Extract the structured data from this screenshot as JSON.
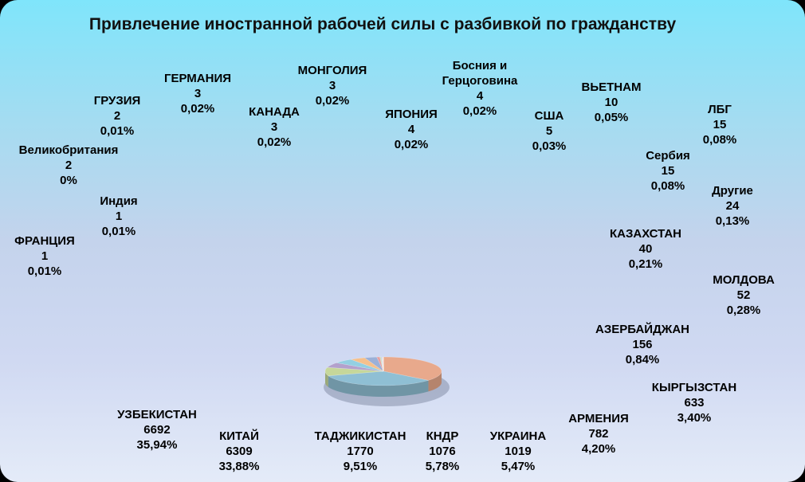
{
  "chart_data": {
    "type": "pie",
    "title": "Привлечение иностранной рабочей силы с разбивкой по гражданству",
    "slices": [
      {
        "name": "УЗБЕКИСТАН",
        "value": 6692,
        "percent": "35,94%",
        "color": "#e8a98c"
      },
      {
        "name": "КИТАЙ",
        "value": 6309,
        "percent": "33,88%",
        "color": "#8fbfd4"
      },
      {
        "name": "ТАДЖИКИСТАН",
        "value": 1770,
        "percent": "9,51%",
        "color": "#c6d79a"
      },
      {
        "name": "КНДР",
        "value": 1076,
        "percent": "5,78%",
        "color": "#b3a1cc"
      },
      {
        "name": "УКРАИНА",
        "value": 1019,
        "percent": "5,47%",
        "color": "#93cfe2"
      },
      {
        "name": "АРМЕНИЯ",
        "value": 782,
        "percent": "4,20%",
        "color": "#f5c08c"
      },
      {
        "name": "КЫРГЫЗСТАН",
        "value": 633,
        "percent": "3,40%",
        "color": "#9bb0d8"
      },
      {
        "name": "АЗЕРБАЙДЖАН",
        "value": 156,
        "percent": "0,84%",
        "color": "#e8a0a0"
      },
      {
        "name": "МОЛДОВА",
        "value": 52,
        "percent": "0,28%",
        "color": "#c4e0a0"
      },
      {
        "name": "КАЗАХСТАН",
        "value": 40,
        "percent": "0,21%",
        "color": "#c8b8e0"
      },
      {
        "name": "Другие",
        "value": 24,
        "percent": "0,13%",
        "color": "#a8d8e8"
      },
      {
        "name": "Сербия",
        "value": 15,
        "percent": "0,08%",
        "color": "#f8d0a8"
      },
      {
        "name": "ЛБГ",
        "value": 15,
        "percent": "0,08%",
        "color": "#4f81bd"
      },
      {
        "name": "ВЬЕТНАМ",
        "value": 10,
        "percent": "0,05%",
        "color": "#c0504d"
      },
      {
        "name": "США",
        "value": 5,
        "percent": "0,03%",
        "color": "#9bbb59"
      },
      {
        "name": "Босния и Герцоговина",
        "value": 4,
        "percent": "0,02%",
        "color": "#8064a2"
      },
      {
        "name": "ЯПОНИЯ",
        "value": 4,
        "percent": "0,02%",
        "color": "#4bacc6"
      },
      {
        "name": "МОНГОЛИЯ",
        "value": 3,
        "percent": "0,02%",
        "color": "#f79646"
      },
      {
        "name": "КАНАДА",
        "value": 3,
        "percent": "0,02%",
        "color": "#2c4d75"
      },
      {
        "name": "ГЕРМАНИЯ",
        "value": 3,
        "percent": "0,02%",
        "color": "#772c2a"
      },
      {
        "name": "ГРУЗИЯ",
        "value": 2,
        "percent": "0,01%",
        "color": "#5f7530"
      },
      {
        "name": "Великобритания",
        "value": 2,
        "percent": "0%",
        "color": "#4d3b62"
      },
      {
        "name": "Индия",
        "value": 1,
        "percent": "0,01%",
        "color": "#276a7c"
      },
      {
        "name": "ФРАНЦИЯ",
        "value": 1,
        "percent": "0,01%",
        "color": "#b65708"
      }
    ]
  }
}
